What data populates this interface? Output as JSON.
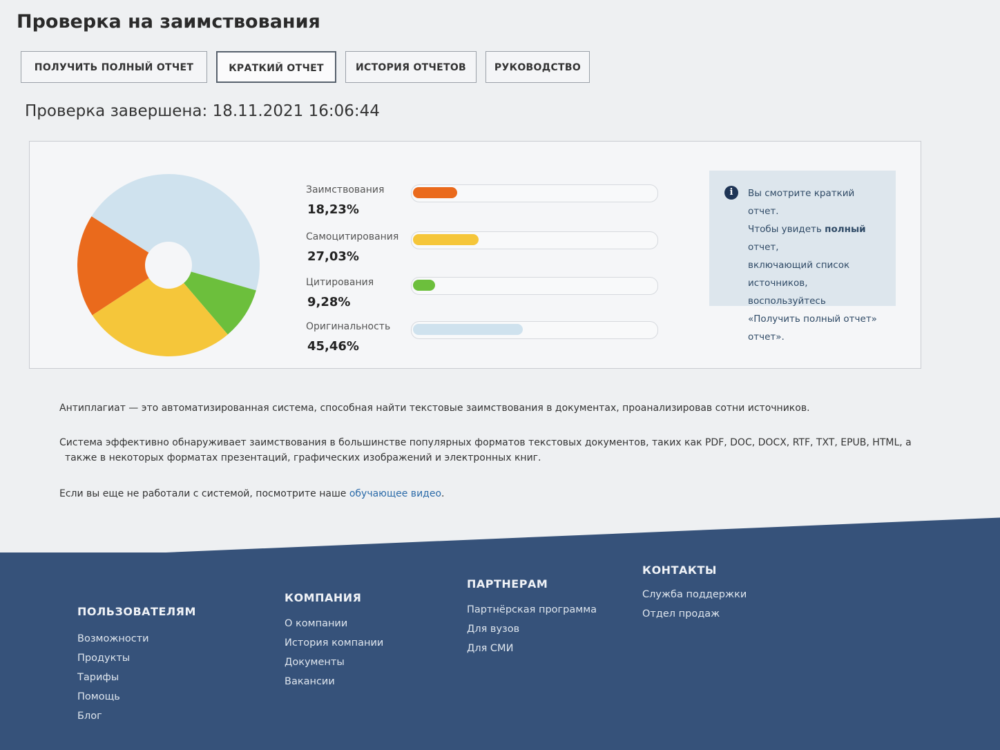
{
  "page": {
    "title": "Проверка на заимствования"
  },
  "tabs": [
    {
      "label": "ПОЛУЧИТЬ ПОЛНЫЙ ОТЧЕТ",
      "active": false
    },
    {
      "label": "КРАТКИЙ ОТЧЕТ",
      "active": true
    },
    {
      "label": "ИСТОРИЯ ОТЧЕТОВ",
      "active": false
    },
    {
      "label": "РУКОВОДСТВО",
      "active": false
    }
  ],
  "check": {
    "completed": "Проверка завершена: 18.11.2021 16:06:44"
  },
  "chart_data": {
    "type": "pie",
    "categories": [
      "Заимствования",
      "Самоцитирования",
      "Цитирования",
      "Оригинальность"
    ],
    "values": [
      18.23,
      27.03,
      9.28,
      45.46
    ],
    "value_labels": [
      "18,23%",
      "27,03%",
      "9,28%",
      "45,46%"
    ],
    "colors": [
      "#ea6a1c",
      "#f5c63a",
      "#6cbf3c",
      "#cfe2ee"
    ]
  },
  "info": {
    "text_line1": "Вы смотрите краткий отчет.",
    "text_line2a": "Чтобы увидеть ",
    "text_line2b": "полный",
    "text_line2c": " отчет,",
    "text_line3": "включающий список",
    "text_line4": "источников, воспользуйтесь",
    "text_line5": "«Получить полный отчет»",
    "text_line6": "отчет»."
  },
  "description": {
    "p1": "Антиплагиат — это автоматизированная система, способная найти текстовые заимствования в документах, проанализировав сотни источников.",
    "p2_line1": "Система эффективно обнаруживает заимствования в большинстве популярных форматов текстовых документов, таких как PDF, DOC, DOCX, RTF, TXT, EPUB, HTML, а",
    "p2_line2": "также в некоторых форматах презентаций, графических изображений и электронных книг.",
    "p3_text": "Если вы еще не работали с системой, посмотрите наше ",
    "p3_link": "обучающее видео",
    "p3_end": "."
  },
  "footer": {
    "users": {
      "title": "ПОЛЬЗОВАТЕЛЯМ",
      "links": [
        "Возможности",
        "Продукты",
        "Тарифы",
        "Помощь",
        "Блог"
      ]
    },
    "company": {
      "title": "КОМПАНИЯ",
      "links": [
        "О компании",
        "История компании",
        "Документы",
        "Вакансии"
      ]
    },
    "partners": {
      "title": "ПАРТНЕРАМ",
      "links": [
        "Партнёрская программа",
        "Для вузов",
        "Для СМИ"
      ]
    },
    "contacts": {
      "title": "КОНТАКТЫ",
      "links": [
        "Служба поддержки",
        "Отдел продаж"
      ]
    }
  }
}
